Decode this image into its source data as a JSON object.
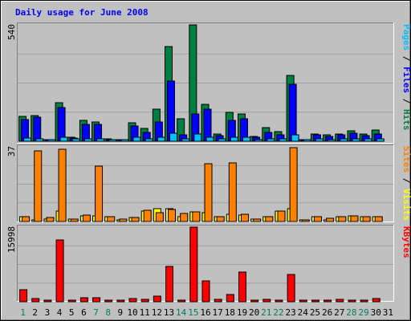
{
  "chart_data": {
    "type": "bar",
    "title": "Daily usage for June 2008",
    "x": [
      "1",
      "2",
      "3",
      "4",
      "5",
      "6",
      "7",
      "8",
      "9",
      "10",
      "11",
      "12",
      "13",
      "14",
      "15",
      "16",
      "17",
      "18",
      "19",
      "20",
      "21",
      "22",
      "23",
      "24",
      "25",
      "26",
      "27",
      "28",
      "29",
      "30",
      "31"
    ],
    "weekend_days": [
      "1",
      "7",
      "8",
      "14",
      "15",
      "21",
      "22",
      "28",
      "29"
    ],
    "panels": [
      {
        "ylim": [
          0,
          540
        ],
        "ytick": "540",
        "right_labels": [
          {
            "text": "Pages",
            "color": "#00c0ff"
          },
          {
            "text": " / ",
            "color": "#000000"
          },
          {
            "text": "Files",
            "color": "#0000ff"
          },
          {
            "text": " / ",
            "color": "#000000"
          },
          {
            "text": "Hits",
            "color": "#008040"
          }
        ],
        "series": [
          {
            "name": "Hits",
            "color": "#008040",
            "values": [
              115,
              120,
              8,
              180,
              18,
              95,
              88,
              12,
              5,
              85,
              60,
              148,
              440,
              105,
              540,
              170,
              32,
              135,
              128,
              22,
              65,
              45,
              305,
              5,
              35,
              28,
              35,
              50,
              35,
              52,
              0
            ]
          },
          {
            "name": "Files",
            "color": "#0000ff",
            "values": [
              100,
              112,
              6,
              155,
              15,
              78,
              80,
              9,
              3,
              70,
              40,
              88,
              280,
              28,
              125,
              148,
              25,
              98,
              103,
              18,
              40,
              28,
              265,
              3,
              28,
              22,
              28,
              36,
              25,
              35,
              0
            ]
          },
          {
            "name": "Pages",
            "color": "#00c0ff",
            "values": [
              15,
              12,
              3,
              18,
              12,
              12,
              12,
              3,
              2,
              18,
              10,
              20,
              38,
              12,
              35,
              20,
              10,
              18,
              20,
              8,
              10,
              12,
              28,
              2,
              10,
              8,
              10,
              10,
              10,
              12,
              0
            ]
          }
        ]
      },
      {
        "ylim": [
          0,
          37
        ],
        "ytick": "37",
        "right_labels": [
          {
            "text": "Sites",
            "color": "#ff8000"
          },
          {
            "text": " / ",
            "color": "#000000"
          },
          {
            "text": "Visits",
            "color": "#ffff00"
          }
        ],
        "series": [
          {
            "name": "Visits",
            "color": "#ffff00",
            "values": [
              2.5,
              0.8,
              1.2,
              5,
              1.2,
              2.6,
              2.6,
              2.2,
              0.3,
              2.0,
              5,
              6.5,
              6.5,
              2.5,
              4.7,
              4.2,
              2.2,
              3.5,
              3.2,
              1.2,
              2.5,
              5,
              6.5,
              0.6,
              2.5,
              0.8,
              2.5,
              2.6,
              2.4,
              2.5,
              0
            ]
          },
          {
            "name": "Sites",
            "color": "#ff8000",
            "values": [
              2.5,
              35,
              1.8,
              36,
              1.2,
              3.2,
              27.5,
              2.4,
              1.3,
              2.0,
              5.5,
              4.2,
              6,
              3.8,
              4.8,
              28.5,
              2.2,
              29,
              3.5,
              1.3,
              2.5,
              5,
              36.5,
              0.7,
              2.5,
              1.6,
              2.5,
              2.6,
              2.4,
              2.5,
              0
            ]
          }
        ]
      },
      {
        "ylim": [
          0,
          15998
        ],
        "ytick": "15998",
        "right_labels": [
          {
            "text": "KBytes",
            "color": "#ff0000"
          }
        ],
        "series": [
          {
            "name": "KBytes",
            "color": "#ff0000",
            "values": [
              2600,
              700,
              300,
              13200,
              300,
              850,
              850,
              300,
              150,
              750,
              500,
              1150,
              7500,
              300,
              16000,
              4400,
              550,
              1500,
              6300,
              300,
              500,
              400,
              5800,
              200,
              350,
              300,
              450,
              400,
              350,
              650,
              0
            ]
          }
        ]
      }
    ]
  }
}
